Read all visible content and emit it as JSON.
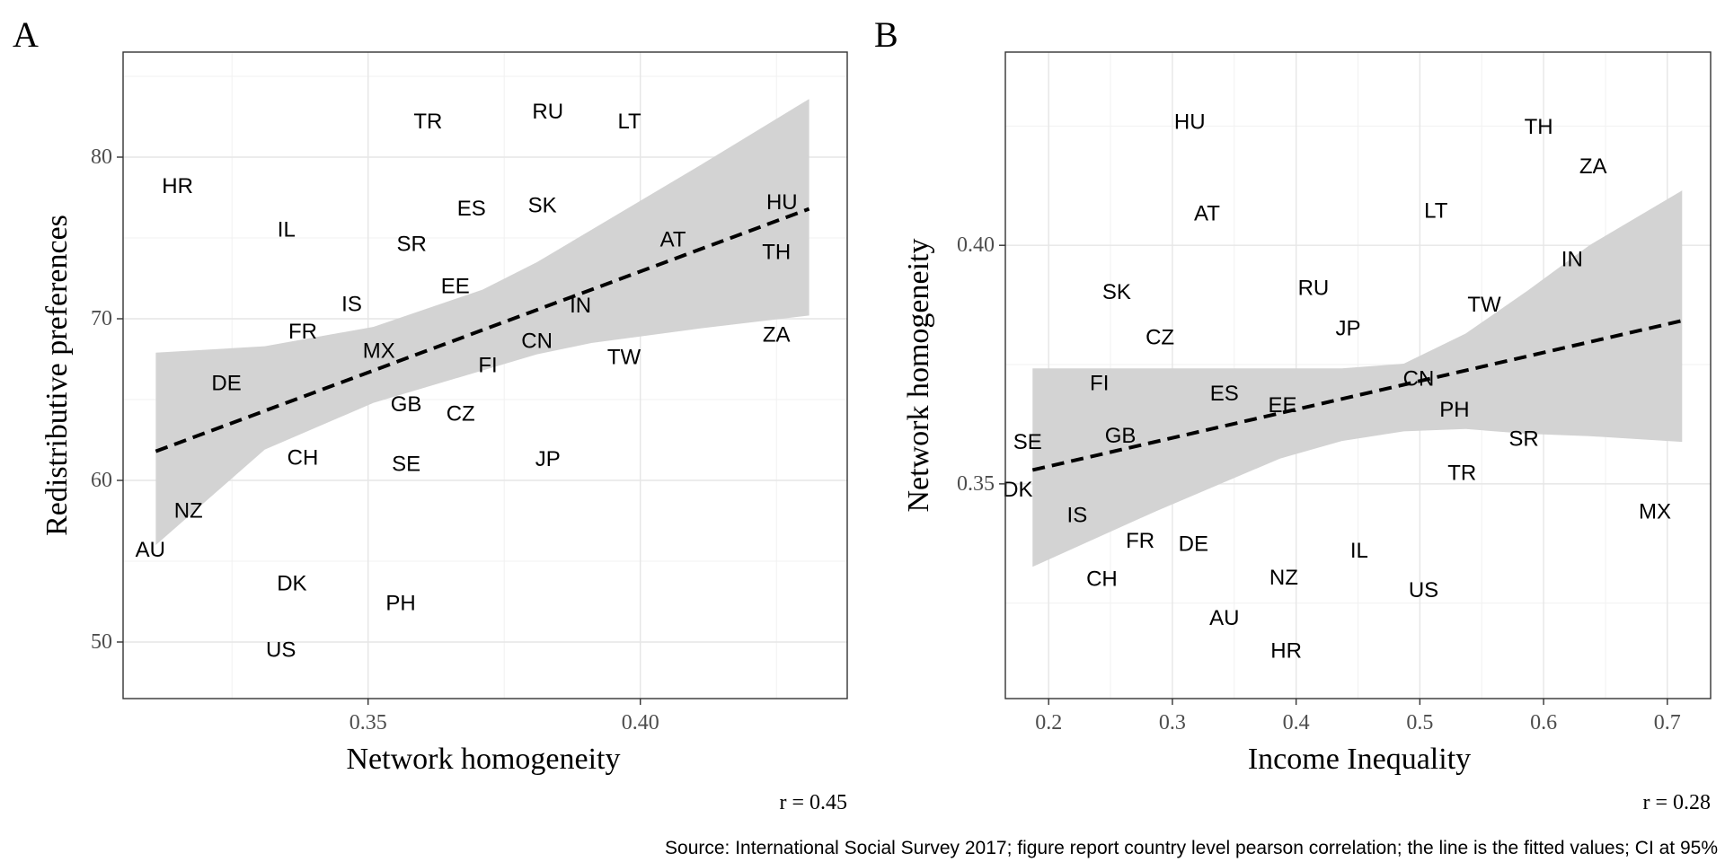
{
  "chart_data": [
    {
      "type": "scatter",
      "panel_letter": "A",
      "xlabel": "Network homogeneity",
      "ylabel": "Redistributive preferences",
      "xlim": [
        0.305,
        0.438
      ],
      "ylim": [
        46.5,
        86.5
      ],
      "x_ticks": [
        0.35,
        0.4
      ],
      "x_tick_labels": [
        "0.35",
        "0.40"
      ],
      "y_ticks": [
        50,
        60,
        70,
        80
      ],
      "y_tick_labels": [
        "50",
        "60",
        "70",
        "80"
      ],
      "grid": true,
      "correlation_label": "r =  0.45",
      "fit": {
        "x_start": 0.311,
        "y_start": 61.8,
        "x_end": 0.431,
        "y_end": 76.8,
        "ci": {
          "x": [
            0.311,
            0.331,
            0.351,
            0.371,
            0.381,
            0.391,
            0.411,
            0.431
          ],
          "upper": [
            67.9,
            68.3,
            69.5,
            71.8,
            73.5,
            75.5,
            79.5,
            83.6
          ],
          "lower": [
            56.0,
            61.9,
            64.8,
            66.8,
            67.8,
            68.5,
            69.4,
            70.2
          ]
        }
      },
      "points": [
        {
          "label": "HR",
          "x": 0.315,
          "y": 78.2
        },
        {
          "label": "IL",
          "x": 0.335,
          "y": 75.5
        },
        {
          "label": "TR",
          "x": 0.361,
          "y": 82.2
        },
        {
          "label": "RU",
          "x": 0.383,
          "y": 82.8
        },
        {
          "label": "LT",
          "x": 0.398,
          "y": 82.2
        },
        {
          "label": "ES",
          "x": 0.369,
          "y": 76.8
        },
        {
          "label": "SK",
          "x": 0.382,
          "y": 77.0
        },
        {
          "label": "SR",
          "x": 0.358,
          "y": 74.6
        },
        {
          "label": "HU",
          "x": 0.426,
          "y": 77.2
        },
        {
          "label": "AT",
          "x": 0.406,
          "y": 74.9
        },
        {
          "label": "TH",
          "x": 0.425,
          "y": 74.1
        },
        {
          "label": "EE",
          "x": 0.366,
          "y": 72.0
        },
        {
          "label": "IS",
          "x": 0.347,
          "y": 70.9
        },
        {
          "label": "IN",
          "x": 0.389,
          "y": 70.8
        },
        {
          "label": "FR",
          "x": 0.338,
          "y": 69.2
        },
        {
          "label": "CN",
          "x": 0.381,
          "y": 68.6
        },
        {
          "label": "ZA",
          "x": 0.425,
          "y": 69.0
        },
        {
          "label": "MX",
          "x": 0.352,
          "y": 68.0
        },
        {
          "label": "TW",
          "x": 0.397,
          "y": 67.6
        },
        {
          "label": "FI",
          "x": 0.372,
          "y": 67.1
        },
        {
          "label": "DE",
          "x": 0.324,
          "y": 66.0
        },
        {
          "label": "GB",
          "x": 0.357,
          "y": 64.7
        },
        {
          "label": "CZ",
          "x": 0.367,
          "y": 64.1
        },
        {
          "label": "CH",
          "x": 0.338,
          "y": 61.4
        },
        {
          "label": "SE",
          "x": 0.357,
          "y": 61.0
        },
        {
          "label": "JP",
          "x": 0.383,
          "y": 61.3
        },
        {
          "label": "NZ",
          "x": 0.317,
          "y": 58.1
        },
        {
          "label": "AU",
          "x": 0.31,
          "y": 55.7
        },
        {
          "label": "DK",
          "x": 0.336,
          "y": 53.6
        },
        {
          "label": "PH",
          "x": 0.356,
          "y": 52.4
        },
        {
          "label": "US",
          "x": 0.334,
          "y": 49.5
        }
      ]
    },
    {
      "type": "scatter",
      "panel_letter": "B",
      "xlabel": "Income Inequality",
      "ylabel": "Network homogeneity",
      "xlim": [
        0.165,
        0.735
      ],
      "ylim": [
        0.305,
        0.4405
      ],
      "x_ticks": [
        0.2,
        0.3,
        0.4,
        0.5,
        0.6,
        0.7
      ],
      "x_tick_labels": [
        "0.2",
        "0.3",
        "0.4",
        "0.5",
        "0.6",
        "0.7"
      ],
      "y_ticks": [
        0.35,
        0.4
      ],
      "y_tick_labels": [
        "0.35",
        "0.40"
      ],
      "grid": true,
      "correlation_label": "r =  0.28",
      "fit": {
        "x_start": 0.187,
        "y_start": 0.3529,
        "x_end": 0.712,
        "y_end": 0.3842,
        "ci": {
          "x": [
            0.187,
            0.287,
            0.387,
            0.437,
            0.487,
            0.537,
            0.587,
            0.637,
            0.712
          ],
          "upper": [
            0.3742,
            0.3742,
            0.3742,
            0.3742,
            0.3752,
            0.3815,
            0.3905,
            0.4,
            0.4115
          ],
          "lower": [
            0.3326,
            0.3443,
            0.3553,
            0.359,
            0.361,
            0.3615,
            0.3605,
            0.36,
            0.3588
          ]
        }
      },
      "points": [
        {
          "label": "HU",
          "x": 0.314,
          "y": 0.4258
        },
        {
          "label": "TH",
          "x": 0.596,
          "y": 0.4248
        },
        {
          "label": "ZA",
          "x": 0.64,
          "y": 0.4165
        },
        {
          "label": "AT",
          "x": 0.328,
          "y": 0.4066
        },
        {
          "label": "LT",
          "x": 0.513,
          "y": 0.4072
        },
        {
          "label": "IN",
          "x": 0.623,
          "y": 0.397
        },
        {
          "label": "SK",
          "x": 0.255,
          "y": 0.3902
        },
        {
          "label": "RU",
          "x": 0.414,
          "y": 0.391
        },
        {
          "label": "TW",
          "x": 0.552,
          "y": 0.3875
        },
        {
          "label": "JP",
          "x": 0.442,
          "y": 0.3825
        },
        {
          "label": "CZ",
          "x": 0.29,
          "y": 0.3807
        },
        {
          "label": "CN",
          "x": 0.499,
          "y": 0.372
        },
        {
          "label": "FI",
          "x": 0.241,
          "y": 0.3711
        },
        {
          "label": "ES",
          "x": 0.342,
          "y": 0.3689
        },
        {
          "label": "EE",
          "x": 0.389,
          "y": 0.3664
        },
        {
          "label": "PH",
          "x": 0.528,
          "y": 0.3655
        },
        {
          "label": "GB",
          "x": 0.258,
          "y": 0.36
        },
        {
          "label": "SE",
          "x": 0.183,
          "y": 0.3587
        },
        {
          "label": "SR",
          "x": 0.584,
          "y": 0.3594
        },
        {
          "label": "TR",
          "x": 0.534,
          "y": 0.3522
        },
        {
          "label": "DK",
          "x": 0.175,
          "y": 0.3488
        },
        {
          "label": "MX",
          "x": 0.69,
          "y": 0.3441
        },
        {
          "label": "IS",
          "x": 0.223,
          "y": 0.3434
        },
        {
          "label": "FR",
          "x": 0.274,
          "y": 0.338
        },
        {
          "label": "DE",
          "x": 0.317,
          "y": 0.3374
        },
        {
          "label": "IL",
          "x": 0.451,
          "y": 0.336
        },
        {
          "label": "NZ",
          "x": 0.39,
          "y": 0.3303
        },
        {
          "label": "CH",
          "x": 0.243,
          "y": 0.33
        },
        {
          "label": "US",
          "x": 0.503,
          "y": 0.3277
        },
        {
          "label": "AU",
          "x": 0.342,
          "y": 0.3218
        },
        {
          "label": "HR",
          "x": 0.392,
          "y": 0.315
        }
      ]
    }
  ],
  "source_note": "Source: International Social Survey 2017; figure report country level pearson correlation; the line is the fitted values; CI at 95%"
}
